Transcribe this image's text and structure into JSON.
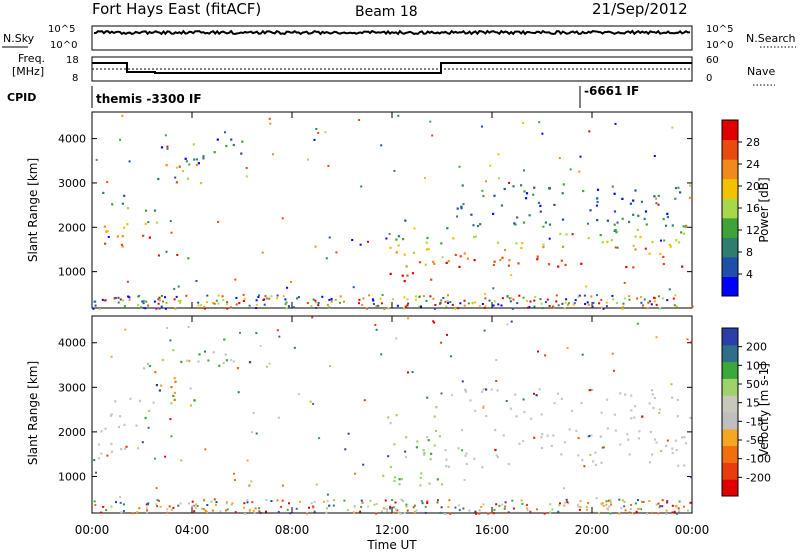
{
  "header": {
    "radar": "Fort Hays East (fitACF)",
    "beam": "Beam 18",
    "date": "21/Sep/2012"
  },
  "top_panels": {
    "nsky_label": "N.Sky",
    "nsearch_label": "N.Search",
    "noise_ticks": [
      "10^5",
      "10^0"
    ],
    "freq_label_1": "Freq.",
    "freq_label_2": "[MHz]",
    "freq_ticks": [
      "18",
      "8"
    ],
    "nave_label": "Nave",
    "nave_ticks": [
      "60",
      "0"
    ],
    "cpid_label": "CPID",
    "cpid_1": "themis -3300 IF",
    "cpid_2": "-6661 IF"
  },
  "colors": {
    "power": [
      "#0000ff",
      "#1f4fa8",
      "#2e7d6e",
      "#3fa33a",
      "#a8d84a",
      "#f2c200",
      "#f08a1c",
      "#e84a10",
      "#e10000"
    ],
    "velocity": [
      "#2a3fa8",
      "#2f6f8a",
      "#3aa83a",
      "#9fd36a",
      "#c8c6bd",
      "#bfbfbf",
      "#f5a623",
      "#f07010",
      "#e83c10",
      "#e10000"
    ]
  },
  "chart_data": [
    {
      "type": "heatmap",
      "title": "",
      "xlabel": "Time UT",
      "ylabel": "Slant Range [km]",
      "x_ticks": [
        "00:00",
        "04:00",
        "08:00",
        "12:00",
        "16:00",
        "20:00",
        "00:00"
      ],
      "xlim_hours": [
        0,
        24
      ],
      "y_ticks": [
        "1000",
        "2000",
        "3000",
        "4000"
      ],
      "ylim_km": [
        180,
        4600
      ],
      "colorbar_label": "Power [dB]",
      "colorbar_ticks": [
        "4",
        "8",
        "12",
        "16",
        "20",
        "24",
        "28"
      ],
      "clim": [
        0,
        30
      ],
      "regions": [
        {
          "t": [
            0.2,
            1.4
          ],
          "r": [
            1300,
            3000
          ],
          "level": "high"
        },
        {
          "t": [
            1.8,
            2.6
          ],
          "r": [
            1700,
            2700
          ],
          "level": "high"
        },
        {
          "t": [
            2.6,
            4.4
          ],
          "r": [
            2800,
            3900
          ],
          "level": "mixed"
        },
        {
          "t": [
            4.4,
            6.3
          ],
          "r": [
            3400,
            4100
          ],
          "level": "low"
        },
        {
          "t": [
            3.4,
            4.0
          ],
          "r": [
            1300,
            1500
          ],
          "level": "mid"
        },
        {
          "t": [
            11.6,
            14.1
          ],
          "r": [
            800,
            2200
          ],
          "level": "high"
        },
        {
          "t": [
            14.1,
            23.8
          ],
          "r": [
            1100,
            2300
          ],
          "level": "high"
        },
        {
          "t": [
            14.5,
            23.5
          ],
          "r": [
            2200,
            3000
          ],
          "level": "low"
        }
      ]
    },
    {
      "type": "heatmap",
      "title": "",
      "xlabel": "Time UT",
      "ylabel": "Slant Range [km]",
      "x_ticks": [
        "00:00",
        "04:00",
        "08:00",
        "12:00",
        "16:00",
        "20:00",
        "00:00"
      ],
      "xlim_hours": [
        0,
        24
      ],
      "y_ticks": [
        "1000",
        "2000",
        "3000",
        "4000"
      ],
      "ylim_km": [
        180,
        4600
      ],
      "colorbar_label": "Velocity [m s-1]",
      "colorbar_ticks": [
        "200",
        "100",
        "50",
        "15",
        "-15",
        "-50",
        "-100",
        "-200"
      ],
      "clim": [
        -250,
        250
      ],
      "regions": [
        {
          "t": [
            0.2,
            2.0
          ],
          "r": [
            1300,
            2800
          ],
          "level": "ground"
        },
        {
          "t": [
            2.0,
            4.4
          ],
          "r": [
            2300,
            3900
          ],
          "level": "mixed"
        },
        {
          "t": [
            4.4,
            6.3
          ],
          "r": [
            3400,
            4100
          ],
          "level": "mixed"
        },
        {
          "t": [
            3.4,
            4.0
          ],
          "r": [
            1300,
            1500
          ],
          "level": "pos"
        },
        {
          "t": [
            11.6,
            14.1
          ],
          "r": [
            800,
            2600
          ],
          "level": "pos"
        },
        {
          "t": [
            14.1,
            23.8
          ],
          "r": [
            1200,
            2100
          ],
          "level": "ground"
        },
        {
          "t": [
            14.5,
            23.5
          ],
          "r": [
            2300,
            3000
          ],
          "level": "ground"
        }
      ]
    }
  ]
}
